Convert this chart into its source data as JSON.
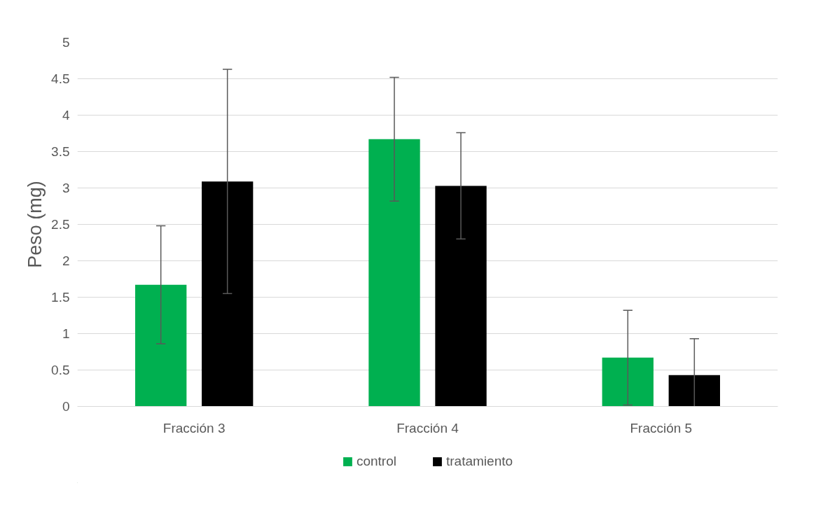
{
  "chart_data": {
    "type": "bar",
    "ylabel": "Peso (mg)",
    "categories": [
      "Fracción 3",
      "Fracción 4",
      "Fracción 5"
    ],
    "series": [
      {
        "name": "control",
        "color": "#00b050",
        "values": [
          1.67,
          3.67,
          0.67
        ],
        "errors": [
          0.81,
          0.85,
          0.65
        ]
      },
      {
        "name": "tratamiento",
        "color": "#000000",
        "values": [
          3.09,
          3.03,
          0.43
        ],
        "errors": [
          1.54,
          0.73,
          0.5
        ]
      }
    ],
    "ylim": [
      0,
      5
    ],
    "yticks": [
      0,
      0.5,
      1,
      1.5,
      2,
      2.5,
      3,
      3.5,
      4,
      4.5,
      5
    ],
    "grid": "y",
    "legend": "bottom"
  }
}
